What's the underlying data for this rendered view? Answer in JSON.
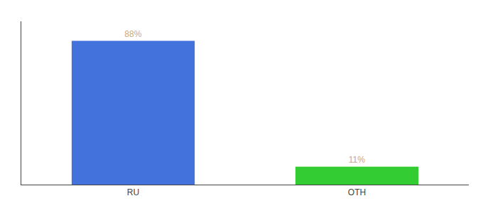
{
  "chart_data": {
    "type": "bar",
    "categories": [
      "RU",
      "OTH"
    ],
    "values": [
      88,
      11
    ],
    "colors": [
      "#4472dd",
      "#33cc33"
    ],
    "value_labels": [
      "88%",
      "11%"
    ],
    "data_labels": true,
    "ylim": [
      0,
      100
    ],
    "tick_labels": "x",
    "grid": false
  }
}
